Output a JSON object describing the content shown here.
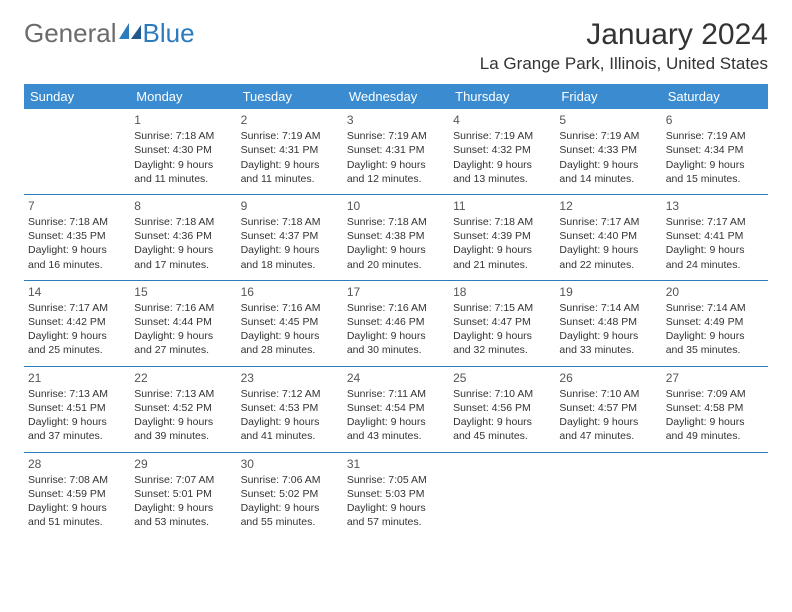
{
  "logo": {
    "text_general": "General",
    "text_blue": "Blue"
  },
  "header": {
    "month_title": "January 2024",
    "location": "La Grange Park, Illinois, United States"
  },
  "colors": {
    "header_bg": "#3b8bd0",
    "header_text": "#ffffff",
    "separator": "#2b7bbf",
    "body_text": "#333333",
    "daynum": "#555555"
  },
  "day_names": [
    "Sunday",
    "Monday",
    "Tuesday",
    "Wednesday",
    "Thursday",
    "Friday",
    "Saturday"
  ],
  "weeks": [
    [
      {
        "empty": true
      },
      {
        "day": "1",
        "sunrise": "Sunrise: 7:18 AM",
        "sunset": "Sunset: 4:30 PM",
        "daylight1": "Daylight: 9 hours",
        "daylight2": "and 11 minutes."
      },
      {
        "day": "2",
        "sunrise": "Sunrise: 7:19 AM",
        "sunset": "Sunset: 4:31 PM",
        "daylight1": "Daylight: 9 hours",
        "daylight2": "and 11 minutes."
      },
      {
        "day": "3",
        "sunrise": "Sunrise: 7:19 AM",
        "sunset": "Sunset: 4:31 PM",
        "daylight1": "Daylight: 9 hours",
        "daylight2": "and 12 minutes."
      },
      {
        "day": "4",
        "sunrise": "Sunrise: 7:19 AM",
        "sunset": "Sunset: 4:32 PM",
        "daylight1": "Daylight: 9 hours",
        "daylight2": "and 13 minutes."
      },
      {
        "day": "5",
        "sunrise": "Sunrise: 7:19 AM",
        "sunset": "Sunset: 4:33 PM",
        "daylight1": "Daylight: 9 hours",
        "daylight2": "and 14 minutes."
      },
      {
        "day": "6",
        "sunrise": "Sunrise: 7:19 AM",
        "sunset": "Sunset: 4:34 PM",
        "daylight1": "Daylight: 9 hours",
        "daylight2": "and 15 minutes."
      }
    ],
    [
      {
        "day": "7",
        "sunrise": "Sunrise: 7:18 AM",
        "sunset": "Sunset: 4:35 PM",
        "daylight1": "Daylight: 9 hours",
        "daylight2": "and 16 minutes."
      },
      {
        "day": "8",
        "sunrise": "Sunrise: 7:18 AM",
        "sunset": "Sunset: 4:36 PM",
        "daylight1": "Daylight: 9 hours",
        "daylight2": "and 17 minutes."
      },
      {
        "day": "9",
        "sunrise": "Sunrise: 7:18 AM",
        "sunset": "Sunset: 4:37 PM",
        "daylight1": "Daylight: 9 hours",
        "daylight2": "and 18 minutes."
      },
      {
        "day": "10",
        "sunrise": "Sunrise: 7:18 AM",
        "sunset": "Sunset: 4:38 PM",
        "daylight1": "Daylight: 9 hours",
        "daylight2": "and 20 minutes."
      },
      {
        "day": "11",
        "sunrise": "Sunrise: 7:18 AM",
        "sunset": "Sunset: 4:39 PM",
        "daylight1": "Daylight: 9 hours",
        "daylight2": "and 21 minutes."
      },
      {
        "day": "12",
        "sunrise": "Sunrise: 7:17 AM",
        "sunset": "Sunset: 4:40 PM",
        "daylight1": "Daylight: 9 hours",
        "daylight2": "and 22 minutes."
      },
      {
        "day": "13",
        "sunrise": "Sunrise: 7:17 AM",
        "sunset": "Sunset: 4:41 PM",
        "daylight1": "Daylight: 9 hours",
        "daylight2": "and 24 minutes."
      }
    ],
    [
      {
        "day": "14",
        "sunrise": "Sunrise: 7:17 AM",
        "sunset": "Sunset: 4:42 PM",
        "daylight1": "Daylight: 9 hours",
        "daylight2": "and 25 minutes."
      },
      {
        "day": "15",
        "sunrise": "Sunrise: 7:16 AM",
        "sunset": "Sunset: 4:44 PM",
        "daylight1": "Daylight: 9 hours",
        "daylight2": "and 27 minutes."
      },
      {
        "day": "16",
        "sunrise": "Sunrise: 7:16 AM",
        "sunset": "Sunset: 4:45 PM",
        "daylight1": "Daylight: 9 hours",
        "daylight2": "and 28 minutes."
      },
      {
        "day": "17",
        "sunrise": "Sunrise: 7:16 AM",
        "sunset": "Sunset: 4:46 PM",
        "daylight1": "Daylight: 9 hours",
        "daylight2": "and 30 minutes."
      },
      {
        "day": "18",
        "sunrise": "Sunrise: 7:15 AM",
        "sunset": "Sunset: 4:47 PM",
        "daylight1": "Daylight: 9 hours",
        "daylight2": "and 32 minutes."
      },
      {
        "day": "19",
        "sunrise": "Sunrise: 7:14 AM",
        "sunset": "Sunset: 4:48 PM",
        "daylight1": "Daylight: 9 hours",
        "daylight2": "and 33 minutes."
      },
      {
        "day": "20",
        "sunrise": "Sunrise: 7:14 AM",
        "sunset": "Sunset: 4:49 PM",
        "daylight1": "Daylight: 9 hours",
        "daylight2": "and 35 minutes."
      }
    ],
    [
      {
        "day": "21",
        "sunrise": "Sunrise: 7:13 AM",
        "sunset": "Sunset: 4:51 PM",
        "daylight1": "Daylight: 9 hours",
        "daylight2": "and 37 minutes."
      },
      {
        "day": "22",
        "sunrise": "Sunrise: 7:13 AM",
        "sunset": "Sunset: 4:52 PM",
        "daylight1": "Daylight: 9 hours",
        "daylight2": "and 39 minutes."
      },
      {
        "day": "23",
        "sunrise": "Sunrise: 7:12 AM",
        "sunset": "Sunset: 4:53 PM",
        "daylight1": "Daylight: 9 hours",
        "daylight2": "and 41 minutes."
      },
      {
        "day": "24",
        "sunrise": "Sunrise: 7:11 AM",
        "sunset": "Sunset: 4:54 PM",
        "daylight1": "Daylight: 9 hours",
        "daylight2": "and 43 minutes."
      },
      {
        "day": "25",
        "sunrise": "Sunrise: 7:10 AM",
        "sunset": "Sunset: 4:56 PM",
        "daylight1": "Daylight: 9 hours",
        "daylight2": "and 45 minutes."
      },
      {
        "day": "26",
        "sunrise": "Sunrise: 7:10 AM",
        "sunset": "Sunset: 4:57 PM",
        "daylight1": "Daylight: 9 hours",
        "daylight2": "and 47 minutes."
      },
      {
        "day": "27",
        "sunrise": "Sunrise: 7:09 AM",
        "sunset": "Sunset: 4:58 PM",
        "daylight1": "Daylight: 9 hours",
        "daylight2": "and 49 minutes."
      }
    ],
    [
      {
        "day": "28",
        "sunrise": "Sunrise: 7:08 AM",
        "sunset": "Sunset: 4:59 PM",
        "daylight1": "Daylight: 9 hours",
        "daylight2": "and 51 minutes."
      },
      {
        "day": "29",
        "sunrise": "Sunrise: 7:07 AM",
        "sunset": "Sunset: 5:01 PM",
        "daylight1": "Daylight: 9 hours",
        "daylight2": "and 53 minutes."
      },
      {
        "day": "30",
        "sunrise": "Sunrise: 7:06 AM",
        "sunset": "Sunset: 5:02 PM",
        "daylight1": "Daylight: 9 hours",
        "daylight2": "and 55 minutes."
      },
      {
        "day": "31",
        "sunrise": "Sunrise: 7:05 AM",
        "sunset": "Sunset: 5:03 PM",
        "daylight1": "Daylight: 9 hours",
        "daylight2": "and 57 minutes."
      },
      {
        "empty": true
      },
      {
        "empty": true
      },
      {
        "empty": true
      }
    ]
  ]
}
